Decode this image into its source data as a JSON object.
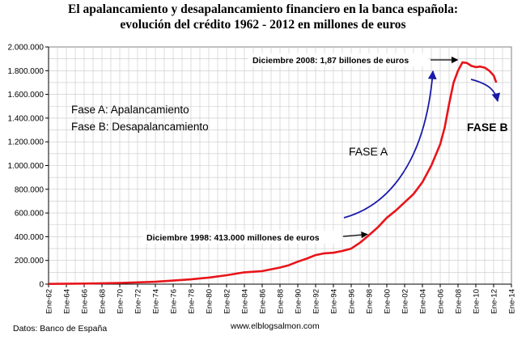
{
  "chart_data": {
    "type": "line",
    "title_line1": "El apalancamiento y desapalancamiento financiero en la banca española:",
    "title_line2": "evolución del crédito 1962 - 2012 en millones de euros",
    "xlabel": "",
    "ylabel": "",
    "ylim": [
      0,
      2000000
    ],
    "yticks": [
      "0",
      "200.000",
      "400.000",
      "600.000",
      "800.000",
      "1.000.000",
      "1.200.000",
      "1.400.000",
      "1.600.000",
      "1.800.000",
      "2.000.000"
    ],
    "x_range_years": [
      1962,
      2014
    ],
    "xticks": [
      "Ene-62",
      "Ene-64",
      "Ene-66",
      "Ene-68",
      "Ene-70",
      "Ene-72",
      "Ene-74",
      "Ene-76",
      "Ene-78",
      "Ene-80",
      "Ene-82",
      "Ene-84",
      "Ene-86",
      "Ene-88",
      "Ene-90",
      "Ene-92",
      "Ene-94",
      "Ene-96",
      "Ene-98",
      "Ene-00",
      "Ene-02",
      "Ene-04",
      "Ene-06",
      "Ene-08",
      "Ene-10",
      "Ene-12",
      "Ene-14"
    ],
    "grid": true,
    "series_color": "#e8141a",
    "x": [
      1962,
      1966,
      1970,
      1974,
      1978,
      1980,
      1982,
      1984,
      1986,
      1988,
      1989,
      1990,
      1991,
      1992,
      1993,
      1994,
      1995,
      1996,
      1997,
      1998,
      1999,
      2000,
      2001,
      2002,
      2003,
      2004,
      2005,
      2006,
      2006.5,
      2007,
      2007.5,
      2008,
      2008.5,
      2009,
      2009.5,
      2010,
      2010.5,
      2011,
      2011.5,
      2012,
      2012.3
    ],
    "y": [
      2000,
      5000,
      10000,
      20000,
      40000,
      55000,
      75000,
      100000,
      110000,
      140000,
      160000,
      190000,
      215000,
      245000,
      260000,
      265000,
      280000,
      300000,
      350000,
      413000,
      480000,
      560000,
      620000,
      690000,
      760000,
      860000,
      1000000,
      1180000,
      1320000,
      1520000,
      1700000,
      1800000,
      1870000,
      1865000,
      1840000,
      1830000,
      1835000,
      1825000,
      1800000,
      1760000,
      1700000
    ],
    "annotations": {
      "peak": "Diciembre 2008: 1,87 billones de euros",
      "mid": "Diciembre 1998: 413.000 millones de euros",
      "legend_a": "Fase A: Apalancamiento",
      "legend_b": "Fase B: Desapalancamiento",
      "phase_a": "FASE A",
      "phase_b": "FASE B"
    },
    "arrow_color": "#1a1aa8"
  },
  "footer": {
    "source": "Datos: Banco de España",
    "website": "www.elblogsalmon.com"
  }
}
